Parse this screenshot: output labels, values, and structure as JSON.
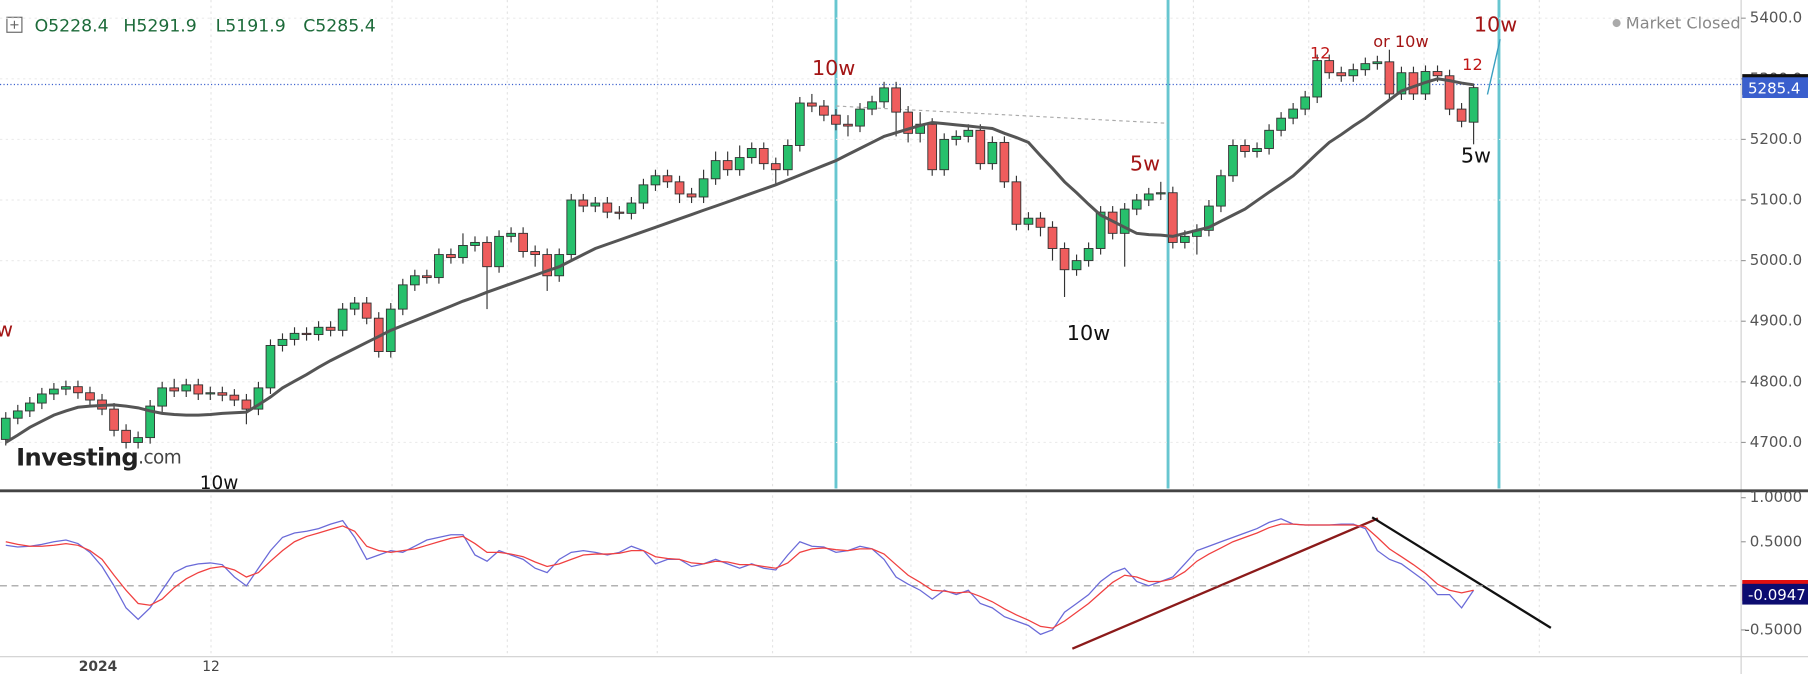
{
  "chart_data": [
    {
      "type": "candlestick",
      "ohlc_header": [
        "O5228.4",
        "H5291.9",
        "L5191.9",
        "C5285.4"
      ],
      "status": "Market Closed",
      "logo": [
        "Investing",
        ".com"
      ],
      "up_color": "#27c06c",
      "down_color": "#ef5d5d",
      "open": [
        4705,
        4740,
        4752,
        4765,
        4780,
        4788,
        4792,
        4782,
        4770,
        4755,
        4720,
        4700,
        4708,
        4760,
        4790,
        4785,
        4795,
        4780,
        4782,
        4778,
        4770,
        4755,
        4790,
        4860,
        4870,
        4880,
        4878,
        4890,
        4885,
        4920,
        4930,
        4905,
        4850,
        4920,
        4960,
        4975,
        4972,
        5010,
        5005,
        5025,
        5030,
        4990,
        5040,
        5045,
        5015,
        5010,
        4975,
        5010,
        5100,
        5090,
        5095,
        5080,
        5078,
        5095,
        5125,
        5140,
        5130,
        5110,
        5105,
        5135,
        5165,
        5150,
        5170,
        5185,
        5160,
        5150,
        5190,
        5260,
        5255,
        5240,
        5225,
        5222,
        5250,
        5262,
        5285,
        5245,
        5210,
        5225,
        5150,
        5200,
        5205,
        5215,
        5160,
        5195,
        5130,
        5060,
        5070,
        5055,
        5020,
        4985,
        5000,
        5020,
        5080,
        5045,
        5085,
        5100,
        5110,
        5112,
        5030,
        5040,
        5050,
        5090,
        5140,
        5190,
        5180,
        5185,
        5215,
        5235,
        5250,
        5270,
        5330,
        5310,
        5305,
        5315,
        5325,
        5328,
        5275,
        5310,
        5275,
        5312,
        5305,
        5250,
        5228.4
      ],
      "high": [
        4750,
        4762,
        4775,
        4790,
        4798,
        4802,
        4802,
        4792,
        4780,
        4765,
        4730,
        4718,
        4770,
        4800,
        4805,
        4805,
        4805,
        4792,
        4792,
        4788,
        4780,
        4800,
        4870,
        4880,
        4890,
        4890,
        4900,
        4900,
        4930,
        4940,
        4940,
        4915,
        4930,
        4970,
        4985,
        4985,
        5020,
        5020,
        5045,
        5040,
        5040,
        5050,
        5055,
        5055,
        5025,
        5020,
        5020,
        5110,
        5110,
        5105,
        5105,
        5090,
        5105,
        5135,
        5150,
        5150,
        5140,
        5120,
        5150,
        5180,
        5180,
        5190,
        5195,
        5195,
        5170,
        5200,
        5270,
        5275,
        5265,
        5250,
        5240,
        5260,
        5272,
        5295,
        5295,
        5255,
        5245,
        5235,
        5210,
        5215,
        5225,
        5225,
        5205,
        5205,
        5140,
        5080,
        5080,
        5065,
        5030,
        5010,
        5030,
        5090,
        5090,
        5095,
        5110,
        5120,
        5130,
        5122,
        5050,
        5060,
        5100,
        5150,
        5200,
        5200,
        5195,
        5225,
        5245,
        5260,
        5280,
        5340,
        5340,
        5320,
        5325,
        5335,
        5338,
        5348,
        5320,
        5320,
        5322,
        5322,
        5315,
        5260,
        5291.9
      ],
      "low": [
        4695,
        4730,
        4742,
        4755,
        4770,
        4778,
        4772,
        4760,
        4745,
        4710,
        4690,
        4690,
        4698,
        4750,
        4775,
        4775,
        4770,
        4770,
        4768,
        4760,
        4730,
        4745,
        4780,
        4850,
        4860,
        4868,
        4868,
        4875,
        4875,
        4910,
        4895,
        4840,
        4840,
        4910,
        4950,
        4962,
        4962,
        4995,
        4995,
        5015,
        4920,
        4980,
        5030,
        5005,
        4990,
        4950,
        4965,
        5000,
        5080,
        5080,
        5070,
        5068,
        5068,
        5085,
        5115,
        5120,
        5095,
        5095,
        5095,
        5125,
        5140,
        5140,
        5160,
        5150,
        5125,
        5140,
        5180,
        5245,
        5230,
        5215,
        5205,
        5212,
        5240,
        5252,
        5205,
        5195,
        5195,
        5140,
        5140,
        5190,
        5195,
        5150,
        5150,
        5120,
        5050,
        5050,
        5040,
        5000,
        4940,
        4975,
        4990,
        5010,
        5035,
        4990,
        5075,
        5090,
        5100,
        5020,
        5020,
        5010,
        5040,
        5080,
        5130,
        5170,
        5170,
        5175,
        5205,
        5225,
        5240,
        5260,
        5300,
        5295,
        5295,
        5305,
        5315,
        5265,
        5265,
        5265,
        5265,
        5295,
        5240,
        5220,
        5191.9
      ],
      "close": [
        4740,
        4752,
        4765,
        4780,
        4788,
        4792,
        4782,
        4770,
        4755,
        4720,
        4700,
        4708,
        4760,
        4790,
        4785,
        4795,
        4780,
        4782,
        4778,
        4770,
        4755,
        4790,
        4860,
        4870,
        4880,
        4878,
        4890,
        4885,
        4920,
        4930,
        4905,
        4850,
        4920,
        4960,
        4975,
        4972,
        5010,
        5005,
        5025,
        5030,
        4990,
        5040,
        5045,
        5015,
        5010,
        4975,
        5010,
        5100,
        5090,
        5095,
        5080,
        5078,
        5095,
        5125,
        5140,
        5130,
        5110,
        5105,
        5135,
        5165,
        5150,
        5170,
        5185,
        5160,
        5150,
        5190,
        5260,
        5255,
        5240,
        5225,
        5222,
        5250,
        5262,
        5285,
        5245,
        5210,
        5225,
        5150,
        5200,
        5205,
        5215,
        5160,
        5195,
        5130,
        5060,
        5070,
        5055,
        5020,
        4985,
        5000,
        5020,
        5080,
        5045,
        5085,
        5100,
        5110,
        5112,
        5030,
        5040,
        5050,
        5090,
        5140,
        5190,
        5180,
        5185,
        5215,
        5235,
        5250,
        5270,
        5330,
        5310,
        5305,
        5315,
        5325,
        5328,
        5275,
        5310,
        5275,
        5312,
        5305,
        5250,
        5230,
        5285.4
      ],
      "lines": [
        {
          "color": "#555555",
          "values": [
            4700,
            4712,
            4725,
            4735,
            4745,
            4752,
            4758,
            4760,
            4761,
            4762,
            4760,
            4757,
            4752,
            4748,
            4746,
            4745,
            4745,
            4746,
            4748,
            4749,
            4750,
            4762,
            4775,
            4790,
            4801,
            4812,
            4824,
            4835,
            4845,
            4855,
            4865,
            4875,
            4885,
            4893,
            4901,
            4909,
            4917,
            4925,
            4933,
            4940,
            4948,
            4955,
            4962,
            4969,
            4976,
            4983,
            4990,
            5000,
            5010,
            5020,
            5027,
            5034,
            5041,
            5048,
            5055,
            5062,
            5069,
            5076,
            5083,
            5090,
            5097,
            5104,
            5111,
            5118,
            5125,
            5133,
            5141,
            5149,
            5157,
            5165,
            5175,
            5185,
            5195,
            5205,
            5211,
            5217,
            5223,
            5228,
            5226,
            5224,
            5222,
            5220,
            5218,
            5210,
            5203,
            5195,
            5173,
            5152,
            5130,
            5112,
            5093,
            5075,
            5065,
            5055,
            5045,
            5043,
            5042,
            5040,
            5045,
            5050,
            5055,
            5065,
            5075,
            5085,
            5099,
            5113,
            5126,
            5140,
            5158,
            5177,
            5195,
            5208,
            5222,
            5235,
            5250,
            5265,
            5280,
            5287,
            5294,
            5300,
            5297,
            5293,
            5290
          ]
        }
      ],
      "ylim": [
        4624,
        5430
      ],
      "yticks": [
        {
          "value": 4700,
          "label": "4700.0"
        },
        {
          "value": 4800,
          "label": "4800.0"
        },
        {
          "value": 4900,
          "label": "4900.0"
        },
        {
          "value": 5000,
          "label": "5000.0"
        },
        {
          "value": 5100,
          "label": "5100.0"
        },
        {
          "value": 5200,
          "label": "5200.0"
        },
        {
          "value": 5300,
          "label": "5300.0"
        },
        {
          "value": 5400,
          "label": "5400.0"
        }
      ],
      "grid": true,
      "hlines": [
        {
          "value": 5290.6,
          "color": "#3a5fcd"
        }
      ],
      "price_tags": [
        {
          "value": 5290.6,
          "color": "#111111"
        },
        {
          "value": 5285.4,
          "color": "#3a5fcd"
        }
      ],
      "annotations": [
        {
          "text": "10w",
          "color": "#a31515"
        },
        {
          "text": "5w",
          "color": "#a31515"
        },
        {
          "text": "10w",
          "color": "#111111"
        },
        {
          "text": "12",
          "color": "#c01818"
        },
        {
          "text": "or 10w",
          "color": "#a31515"
        },
        {
          "text": "10w",
          "color": "#a31515"
        },
        {
          "text": "12",
          "color": "#c01818"
        },
        {
          "text": "5w",
          "color": "#111111"
        },
        {
          "text": "w",
          "color": "#a31515"
        },
        {
          "text": "10w",
          "color": "#111111"
        }
      ]
    },
    {
      "type": "line",
      "series": [
        {
          "color": "#6a6ad8",
          "values": [
            0.46,
            0.44,
            0.45,
            0.47,
            0.5,
            0.52,
            0.48,
            0.38,
            0.22,
            0.0,
            -0.25,
            -0.38,
            -0.25,
            -0.05,
            0.15,
            0.22,
            0.25,
            0.26,
            0.24,
            0.1,
            0.0,
            0.2,
            0.4,
            0.55,
            0.6,
            0.62,
            0.65,
            0.7,
            0.74,
            0.55,
            0.3,
            0.35,
            0.4,
            0.38,
            0.45,
            0.52,
            0.55,
            0.58,
            0.58,
            0.35,
            0.28,
            0.4,
            0.35,
            0.3,
            0.2,
            0.15,
            0.3,
            0.38,
            0.4,
            0.38,
            0.35,
            0.38,
            0.45,
            0.4,
            0.25,
            0.3,
            0.3,
            0.22,
            0.25,
            0.3,
            0.25,
            0.2,
            0.25,
            0.2,
            0.18,
            0.35,
            0.5,
            0.45,
            0.44,
            0.38,
            0.4,
            0.45,
            0.42,
            0.3,
            0.1,
            0.02,
            -0.05,
            -0.15,
            -0.05,
            -0.1,
            -0.05,
            -0.2,
            -0.25,
            -0.35,
            -0.4,
            -0.45,
            -0.55,
            -0.5,
            -0.3,
            -0.2,
            -0.1,
            0.05,
            0.15,
            0.2,
            0.05,
            0.0,
            0.05,
            0.1,
            0.25,
            0.4,
            0.45,
            0.5,
            0.55,
            0.6,
            0.65,
            0.72,
            0.76,
            0.7,
            0.69,
            0.69,
            0.69,
            0.7,
            0.7,
            0.65,
            0.4,
            0.3,
            0.25,
            0.15,
            0.05,
            -0.1,
            -0.1,
            -0.25,
            -0.05
          ]
        },
        {
          "color": "#f04040",
          "values": [
            0.5,
            0.47,
            0.45,
            0.45,
            0.46,
            0.48,
            0.46,
            0.4,
            0.3,
            0.12,
            -0.05,
            -0.2,
            -0.22,
            -0.15,
            -0.02,
            0.08,
            0.15,
            0.2,
            0.22,
            0.18,
            0.1,
            0.15,
            0.28,
            0.4,
            0.5,
            0.56,
            0.6,
            0.64,
            0.68,
            0.62,
            0.45,
            0.4,
            0.38,
            0.4,
            0.42,
            0.46,
            0.5,
            0.54,
            0.56,
            0.48,
            0.38,
            0.38,
            0.36,
            0.33,
            0.27,
            0.22,
            0.25,
            0.3,
            0.35,
            0.36,
            0.36,
            0.37,
            0.4,
            0.4,
            0.33,
            0.31,
            0.3,
            0.26,
            0.25,
            0.28,
            0.27,
            0.24,
            0.24,
            0.22,
            0.2,
            0.26,
            0.38,
            0.42,
            0.43,
            0.41,
            0.4,
            0.42,
            0.42,
            0.36,
            0.24,
            0.12,
            0.04,
            -0.05,
            -0.06,
            -0.08,
            -0.07,
            -0.12,
            -0.18,
            -0.26,
            -0.33,
            -0.39,
            -0.46,
            -0.48,
            -0.4,
            -0.3,
            -0.2,
            -0.08,
            0.04,
            0.12,
            0.1,
            0.05,
            0.05,
            0.08,
            0.16,
            0.28,
            0.36,
            0.43,
            0.5,
            0.55,
            0.6,
            0.66,
            0.7,
            0.7,
            0.69,
            0.69,
            0.69,
            0.69,
            0.69,
            0.67,
            0.55,
            0.42,
            0.33,
            0.24,
            0.14,
            0.02,
            -0.05,
            -0.08,
            -0.05
          ]
        }
      ],
      "ylim": [
        -0.804,
        1.052
      ],
      "yticks": [
        {
          "value": -0.5,
          "label": "-0.5000"
        },
        {
          "value": 0.5,
          "label": "0.5000"
        },
        {
          "value": 1,
          "label": "1.0000"
        }
      ],
      "hlines": [
        {
          "value": 0,
          "color": "#999999"
        }
      ],
      "price_tags": [
        {
          "value": -0.0513,
          "color": "#e01010"
        },
        {
          "value": -0.0947,
          "color": "#0c0c70"
        }
      ],
      "x_labels": [
        "2024",
        "12"
      ]
    }
  ]
}
